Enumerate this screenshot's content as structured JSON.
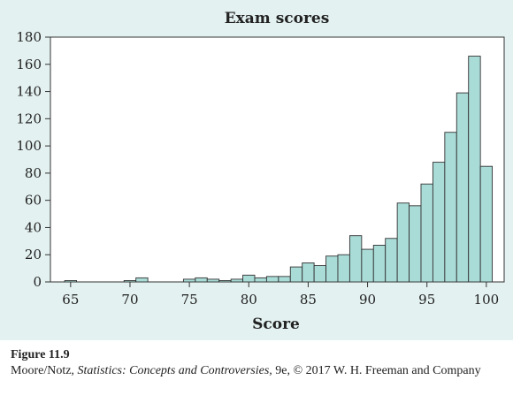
{
  "chart_data": {
    "type": "bar",
    "title": "Exam scores",
    "xlabel": "Score",
    "ylabel": "",
    "bin_width": 1,
    "xlim": [
      63.3,
      101.5
    ],
    "ylim": [
      0,
      180
    ],
    "xticks": [
      65,
      70,
      75,
      80,
      85,
      90,
      95,
      100
    ],
    "yticks": [
      0,
      20,
      40,
      60,
      80,
      100,
      120,
      140,
      160,
      180
    ],
    "grid": false,
    "bar_color": "#a9dbd7",
    "bins": [
      {
        "x": 65,
        "y": 1
      },
      {
        "x": 70,
        "y": 1
      },
      {
        "x": 71,
        "y": 3
      },
      {
        "x": 75,
        "y": 2
      },
      {
        "x": 76,
        "y": 3
      },
      {
        "x": 77,
        "y": 2
      },
      {
        "x": 78,
        "y": 1
      },
      {
        "x": 79,
        "y": 2
      },
      {
        "x": 80,
        "y": 5
      },
      {
        "x": 81,
        "y": 3
      },
      {
        "x": 82,
        "y": 4
      },
      {
        "x": 83,
        "y": 4
      },
      {
        "x": 84,
        "y": 11
      },
      {
        "x": 85,
        "y": 14
      },
      {
        "x": 86,
        "y": 12
      },
      {
        "x": 87,
        "y": 19
      },
      {
        "x": 88,
        "y": 20
      },
      {
        "x": 89,
        "y": 34
      },
      {
        "x": 90,
        "y": 24
      },
      {
        "x": 91,
        "y": 27
      },
      {
        "x": 92,
        "y": 32
      },
      {
        "x": 93,
        "y": 58
      },
      {
        "x": 94,
        "y": 56
      },
      {
        "x": 95,
        "y": 72
      },
      {
        "x": 96,
        "y": 88
      },
      {
        "x": 97,
        "y": 110
      },
      {
        "x": 98,
        "y": 139
      },
      {
        "x": 99,
        "y": 166
      },
      {
        "x": 100,
        "y": 85
      }
    ]
  },
  "caption": {
    "label": "Figure 11.9",
    "authors": "Moore/Notz, ",
    "book": "Statistics: Concepts and Controversies,",
    "rest": " 9e, © 2017 W. H. Freeman and Company"
  }
}
